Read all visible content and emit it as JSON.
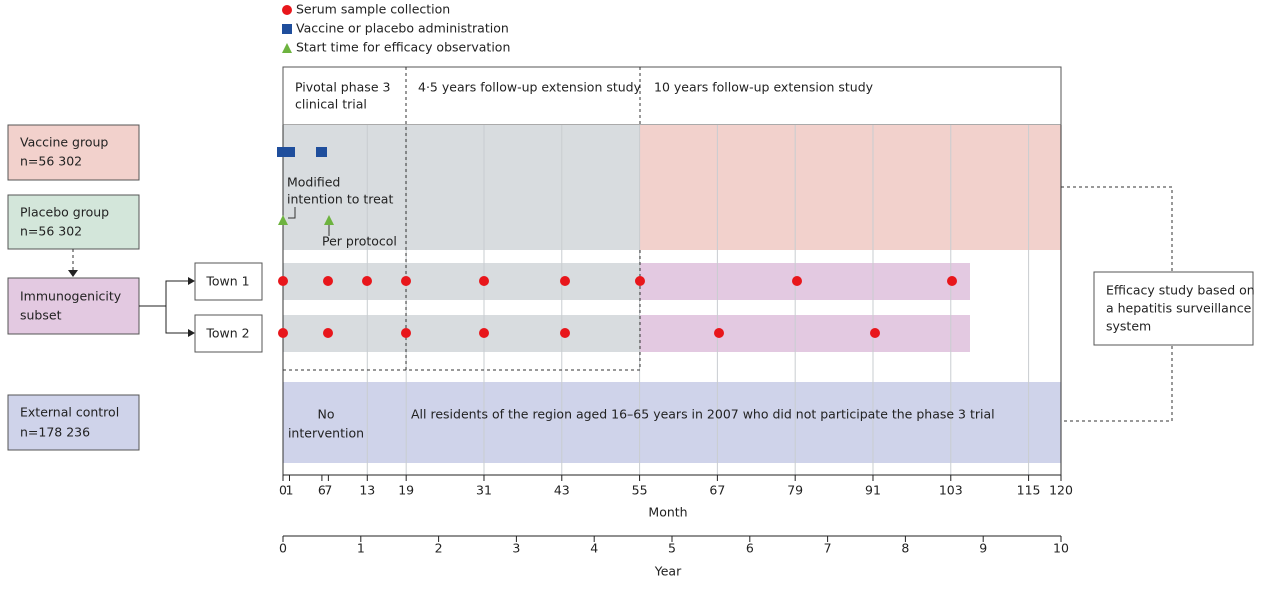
{
  "legend": {
    "items": [
      "Serum sample collection",
      "Vaccine or placebo administration",
      "Start time for efficacy observation"
    ]
  },
  "header": {
    "phases": [
      [
        "Pivotal phase 3",
        "clinical trial"
      ],
      [
        "4·5 years follow-up extension study"
      ],
      [
        "10 years follow-up extension study"
      ]
    ]
  },
  "groups": {
    "vaccine": [
      "Vaccine group",
      "n=56 302"
    ],
    "placebo": [
      "Placebo group",
      "n=56 302"
    ],
    "immunogenicity": [
      "Immunogenicity",
      "subset"
    ],
    "external": [
      "External control",
      "n=178 236"
    ]
  },
  "towns": [
    "Town 1",
    "Town 2"
  ],
  "annotations": {
    "mitt": [
      "Modified",
      "intention to treat"
    ],
    "pp": "Per protocol",
    "no_intervention": [
      "No",
      "intervention"
    ],
    "residents": "All residents of the region aged 16–65 years in 2007 who did not participate the phase 3 trial"
  },
  "efficacy_box": [
    "Efficacy study based on",
    "a hepatitis surveillance",
    "system"
  ],
  "month_axis": {
    "label": "Month",
    "ticks": [
      0,
      1,
      6,
      7,
      13,
      19,
      31,
      43,
      55,
      67,
      79,
      91,
      103,
      115,
      120
    ]
  },
  "year_axis": {
    "label": "Year",
    "ticks": [
      0,
      1,
      2,
      3,
      4,
      5,
      6,
      7,
      8,
      9,
      10
    ]
  }
}
